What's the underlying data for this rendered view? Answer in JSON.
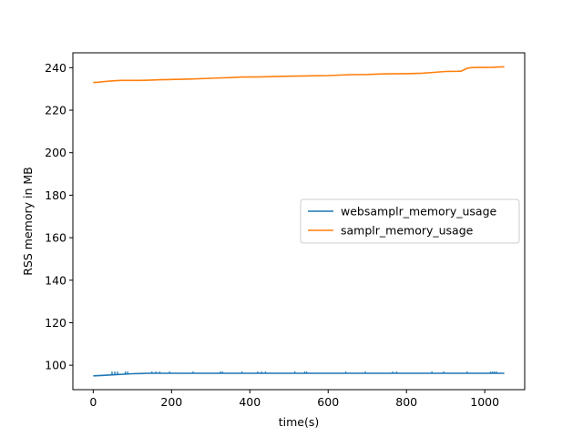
{
  "chart_data": {
    "type": "line",
    "title": "",
    "xlabel": "time(s)",
    "ylabel": "RSS memory in MB",
    "xlim": [
      -52,
      1102
    ],
    "ylim": [
      88.5,
      247
    ],
    "xticks": [
      0,
      200,
      400,
      600,
      800,
      1000
    ],
    "yticks": [
      100,
      120,
      140,
      160,
      180,
      200,
      220,
      240
    ],
    "grid": false,
    "legend_position": "center-right",
    "series": [
      {
        "name": "websamplr_memory_usage",
        "color": "#1f77b4",
        "x": [
          0,
          20,
          40,
          60,
          80,
          100,
          120,
          140,
          150,
          160,
          200,
          250,
          300,
          350,
          400,
          450,
          500,
          550,
          600,
          650,
          700,
          750,
          800,
          850,
          900,
          950,
          1000,
          1050
        ],
        "y": [
          95.0,
          95.2,
          95.4,
          95.6,
          95.8,
          96.0,
          96.1,
          96.2,
          96.2,
          96.2,
          96.2,
          96.2,
          96.2,
          96.2,
          96.2,
          96.2,
          96.2,
          96.2,
          96.2,
          96.2,
          96.2,
          96.2,
          96.2,
          96.2,
          96.2,
          96.2,
          96.2,
          96.2
        ],
        "spikes_x": [
          48,
          55,
          62,
          82,
          88,
          150,
          160,
          170,
          195,
          255,
          325,
          330,
          380,
          420,
          430,
          440,
          515,
          540,
          545,
          645,
          695,
          765,
          775,
          865,
          895,
          955,
          1015,
          1020,
          1025,
          1030
        ],
        "spike_top": 97.0
      },
      {
        "name": "samplr_memory_usage",
        "color": "#ff7f0e",
        "x": [
          0,
          15,
          30,
          50,
          70,
          90,
          120,
          150,
          170,
          190,
          210,
          240,
          270,
          300,
          330,
          360,
          380,
          400,
          430,
          460,
          500,
          540,
          570,
          600,
          630,
          660,
          700,
          730,
          760,
          800,
          840,
          870,
          900,
          930,
          940,
          955,
          965,
          980,
          1000,
          1020,
          1035,
          1050
        ],
        "y": [
          233.0,
          233.2,
          233.5,
          233.8,
          234.0,
          234.0,
          234.0,
          234.2,
          234.3,
          234.4,
          234.5,
          234.6,
          234.8,
          235.0,
          235.2,
          235.4,
          235.6,
          235.6,
          235.7,
          235.8,
          236.0,
          236.1,
          236.2,
          236.3,
          236.5,
          236.7,
          236.8,
          237.0,
          237.1,
          237.2,
          237.4,
          237.8,
          238.2,
          238.3,
          238.4,
          239.7,
          240.0,
          240.1,
          240.1,
          240.2,
          240.3,
          240.4
        ]
      }
    ]
  }
}
